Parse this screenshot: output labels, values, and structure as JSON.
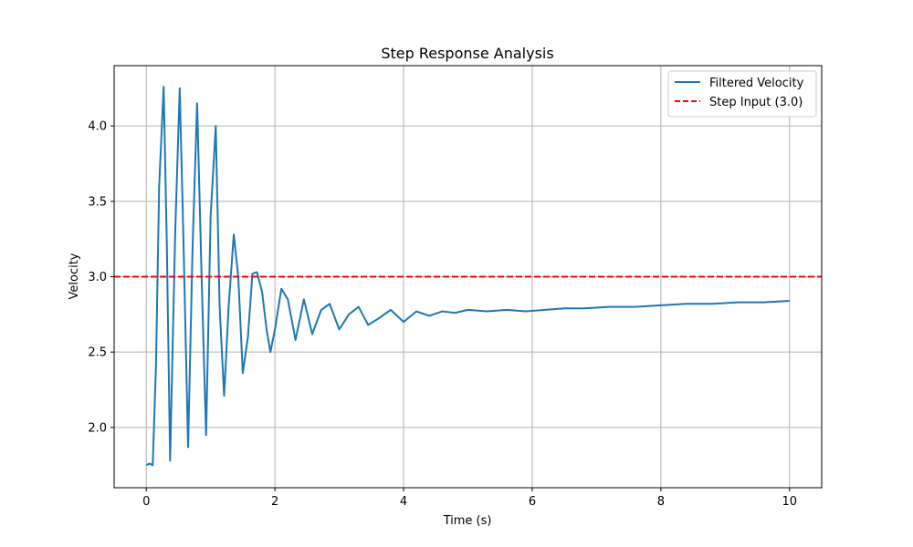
{
  "chart_data": {
    "type": "line",
    "title": "Step Response Analysis",
    "xlabel": "Time (s)",
    "ylabel": "Velocity",
    "xlim": [
      -0.5,
      10.5
    ],
    "ylim": [
      1.6,
      4.4
    ],
    "xticks": [
      0,
      2,
      4,
      6,
      8,
      10
    ],
    "yticks": [
      2.0,
      2.5,
      3.0,
      3.5,
      4.0
    ],
    "xtick_labels": [
      "0",
      "2",
      "4",
      "6",
      "8",
      "10"
    ],
    "ytick_labels": [
      "2.0",
      "2.5",
      "3.0",
      "3.5",
      "4.0"
    ],
    "grid": true,
    "legend_position": "top-right",
    "series": [
      {
        "name": "Filtered Velocity",
        "color": "#1f77b4",
        "style": "solid",
        "x": [
          0,
          0.05,
          0.1,
          0.15,
          0.2,
          0.27,
          0.32,
          0.37,
          0.45,
          0.52,
          0.58,
          0.65,
          0.72,
          0.79,
          0.86,
          0.93,
          1.0,
          1.08,
          1.14,
          1.21,
          1.28,
          1.36,
          1.43,
          1.5,
          1.58,
          1.65,
          1.72,
          1.8,
          1.87,
          1.93,
          2.0,
          2.1,
          2.2,
          2.32,
          2.45,
          2.58,
          2.72,
          2.85,
          3.0,
          3.15,
          3.3,
          3.45,
          3.6,
          3.8,
          4.0,
          4.2,
          4.4,
          4.6,
          4.8,
          5.0,
          5.3,
          5.6,
          5.9,
          6.2,
          6.5,
          6.8,
          7.2,
          7.6,
          8.0,
          8.4,
          8.8,
          9.2,
          9.6,
          10.0
        ],
        "y": [
          1.75,
          1.76,
          1.75,
          2.4,
          3.6,
          4.26,
          3.2,
          1.78,
          3.3,
          4.25,
          3.2,
          1.87,
          3.2,
          4.15,
          3.0,
          1.95,
          3.4,
          4.0,
          2.8,
          2.21,
          2.8,
          3.28,
          3.0,
          2.36,
          2.6,
          3.02,
          3.03,
          2.9,
          2.65,
          2.5,
          2.65,
          2.92,
          2.85,
          2.58,
          2.85,
          2.62,
          2.78,
          2.82,
          2.65,
          2.75,
          2.8,
          2.68,
          2.72,
          2.78,
          2.7,
          2.77,
          2.74,
          2.77,
          2.76,
          2.78,
          2.77,
          2.78,
          2.77,
          2.78,
          2.79,
          2.79,
          2.8,
          2.8,
          2.81,
          2.82,
          2.82,
          2.83,
          2.83,
          2.84
        ]
      },
      {
        "name": "Step Input (3.0)",
        "color": "#ff0000",
        "style": "dashed",
        "x": [
          -0.5,
          10.5
        ],
        "y": [
          3.0,
          3.0
        ]
      }
    ]
  }
}
